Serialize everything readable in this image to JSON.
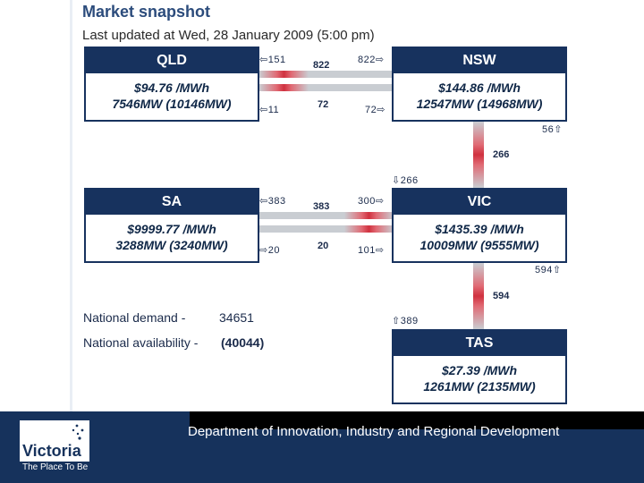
{
  "header": {
    "title": "Market snapshot",
    "updated": "Last updated at Wed, 28 January 2009 (5:00 pm)"
  },
  "regions": {
    "qld": {
      "name": "QLD",
      "price": "$94.76 /MWh",
      "mw": "7546MW (10146MW)"
    },
    "nsw": {
      "name": "NSW",
      "price": "$144.86 /MWh",
      "mw": "12547MW (14968MW)"
    },
    "sa": {
      "name": "SA",
      "price": "$9999.77 /MWh",
      "mw": "3288MW (3240MW)"
    },
    "vic": {
      "name": "VIC",
      "price": "$1435.39 /MWh",
      "mw": "10009MW (9555MW)"
    },
    "tas": {
      "name": "TAS",
      "price": "$27.39 /MWh",
      "mw": "1261MW (2135MW)"
    }
  },
  "interconnectors": {
    "qld_nsw": {
      "qld_top": "⇦151",
      "qld_bottom": "⇦11",
      "flow_top": "822",
      "flow_bottom": "72",
      "nsw_top": "822⇨",
      "nsw_bottom": "72⇨"
    },
    "nsw_vic": {
      "nsw_side": "56⇧",
      "flow": "266",
      "vic_side": "⇩266"
    },
    "sa_vic": {
      "sa_top": "⇦383",
      "sa_bottom": "⇨20",
      "flow_top": "383",
      "flow_bottom": "20",
      "vic_top": "300⇨",
      "vic_bottom": "101⇨"
    },
    "vic_tas": {
      "vic_side": "594⇧",
      "flow": "594",
      "tas_side": "⇧389"
    }
  },
  "national": {
    "demand_label": "National demand -",
    "demand_value": "34651",
    "availability_label": "National availability -",
    "availability_value": "(40044)"
  },
  "footer": {
    "department": "Department of Innovation, Industry and Regional Development",
    "logo_text": "Victoria",
    "tagline": "The Place To Be"
  },
  "colors": {
    "navy": "#17325e",
    "flow_red": "#d0313f",
    "link_grey": "#c9cdd2"
  }
}
